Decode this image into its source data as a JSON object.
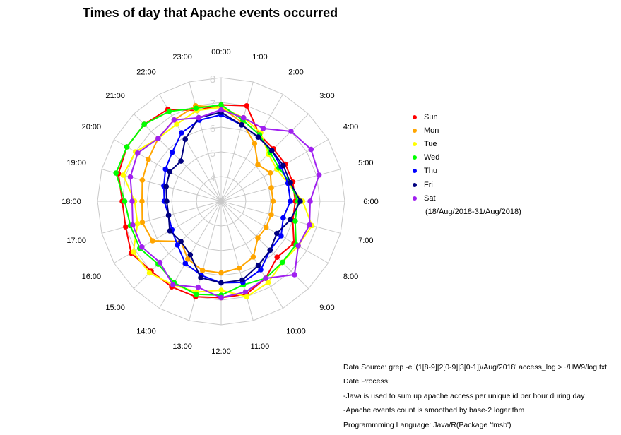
{
  "title": "Times of day that Apache events occurred",
  "legend_note": "(18/Aug/2018-31/Aug/2018)",
  "notes": [
    "Data Source: grep -e '(1[8-9]|2[0-9]|3[0-1])/Aug/2018' access_log >~/HW9/log.txt",
    "Date Process:",
    "-Java is used to sum up apache access per unique id per hour during day",
    "-Apache events count is smoothed by base-2 logarithm",
    "Programmming Language: Java/R(Package 'fmsb')"
  ],
  "chart_data": {
    "type": "radar",
    "title": "Times of day that Apache events occurred",
    "axis_labels": [
      "00:00",
      "1:00",
      "2:00",
      "3:00",
      "4:00",
      "5:00",
      "6:00",
      "7:00",
      "8:00",
      "9:00",
      "10:00",
      "11:00",
      "12:00",
      "13:00",
      "14:00",
      "15:00",
      "16:00",
      "17:00",
      "18:00",
      "19:00",
      "20:00",
      "21:00",
      "22:00",
      "23:00"
    ],
    "ring_labels": [
      "4",
      "5",
      "6",
      "7",
      "8"
    ],
    "range": [
      3,
      8
    ],
    "grid": true,
    "legend_position": "right",
    "series": [
      {
        "name": "Sun",
        "color": "#FF0000",
        "values": [
          6.9,
          7.0,
          6.1,
          6.0,
          6.0,
          6.0,
          6.0,
          6.0,
          6.4,
          6.2,
          6.6,
          6.9,
          6.9,
          7.0,
          7.0,
          7.0,
          7.2,
          7.0,
          7.0,
          7.3,
          7.4,
          7.4,
          7.3,
          6.8
        ]
      },
      {
        "name": "Mon",
        "color": "#FFA500",
        "values": [
          6.8,
          6.3,
          5.7,
          5.1,
          5.3,
          5.1,
          5.1,
          5.1,
          5.1,
          5.1,
          5.6,
          5.8,
          5.9,
          5.9,
          5.7,
          5.3,
          6.2,
          6.3,
          6.2,
          6.3,
          6.4,
          6.6,
          6.8,
          7.0
        ]
      },
      {
        "name": "Tue",
        "color": "#FFFF00",
        "values": [
          6.8,
          6.5,
          6.2,
          5.7,
          5.6,
          5.8,
          6.3,
          6.8,
          6.6,
          6.5,
          6.8,
          7.0,
          6.6,
          6.8,
          6.9,
          7.1,
          7.1,
          6.5,
          6.5,
          7.1,
          7.0,
          6.6,
          6.6,
          6.8
        ]
      },
      {
        "name": "Wed",
        "color": "#00FF00",
        "values": [
          6.9,
          6.4,
          6.1,
          5.8,
          5.7,
          5.9,
          6.1,
          6.1,
          6.5,
          6.5,
          6.6,
          6.5,
          6.8,
          6.9,
          6.8,
          6.6,
          6.8,
          6.8,
          6.9,
          7.4,
          7.4,
          7.4,
          7.2,
          6.9
        ]
      },
      {
        "name": "Thu",
        "color": "#0000FF",
        "values": [
          6.5,
          6.2,
          6.0,
          5.9,
          5.8,
          5.8,
          5.8,
          5.6,
          5.8,
          5.8,
          6.2,
          6.4,
          6.3,
          6.1,
          5.9,
          5.5,
          5.3,
          5.2,
          5.3,
          5.4,
          5.6,
          5.8,
          6.2,
          6.4
        ]
      },
      {
        "name": "Fri",
        "color": "#000080",
        "values": [
          6.6,
          6.2,
          6.0,
          5.9,
          5.9,
          5.9,
          6.2,
          5.9,
          5.6,
          5.8,
          6.0,
          6.3,
          6.3,
          6.2,
          5.5,
          5.3,
          5.4,
          5.2,
          5.2,
          5.3,
          5.4,
          5.3,
          5.9,
          6.5
        ]
      },
      {
        "name": "Sat",
        "color": "#A020F0",
        "values": [
          6.7,
          6.5,
          6.4,
          7.0,
          7.2,
          7.1,
          6.6,
          6.7,
          6.6,
          7.2,
          6.6,
          6.8,
          6.9,
          6.6,
          6.9,
          6.5,
          6.7,
          6.7,
          6.6,
          6.8,
          6.9,
          6.6,
          6.8,
          6.5
        ]
      }
    ]
  }
}
